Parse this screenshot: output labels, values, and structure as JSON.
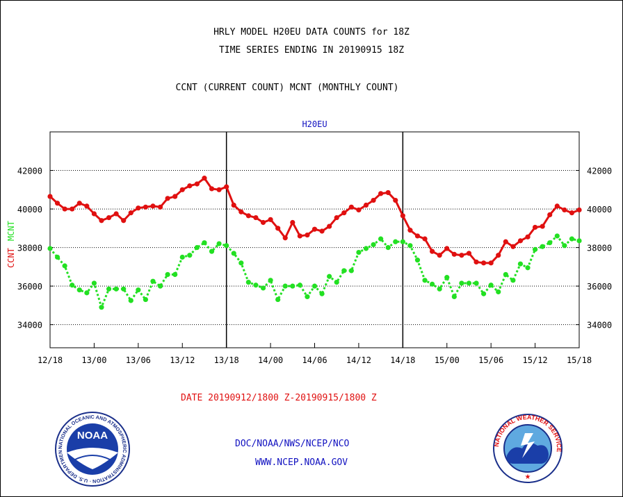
{
  "header": {
    "title_line1": "HRLY MODEL H20EU DATA COUNTS for 18Z",
    "title_line2": "TIME SERIES ENDING IN 20190915 18Z",
    "subtitle": "CCNT (CURRENT COUNT) MCNT (MONTHLY COUNT)"
  },
  "footer": {
    "date_range": "DATE 20190912/1800 Z-20190915/1800 Z",
    "org": "DOC/NOAA/NWS/NCEP/NCO",
    "url": "WWW.NCEP.NOAA.GOV"
  },
  "logos": {
    "noaa_text": "NOAA",
    "noaa_ring_text": "NATIONAL OCEANIC AND ATMOSPHERIC ADMINISTRATION · U.S. DEPARTMENT OF COMMERCE ·",
    "nws_ring_text": "NATIONAL WEATHER SERVICE"
  },
  "colors": {
    "ccnt": "#e01010",
    "mcnt": "#22e022",
    "title": "#000000",
    "chart_title": "#1010c0",
    "date_range": "#e01010",
    "footer_links": "#1010c0"
  },
  "chart_data": {
    "type": "line",
    "title": "H20EU",
    "ylabel_ccnt": "CCNT",
    "ylabel_mcnt": "MCNT",
    "ylim": [
      32800,
      44000
    ],
    "yticks": [
      34000,
      36000,
      38000,
      40000,
      42000
    ],
    "xlim": [
      0,
      72
    ],
    "xticks": [
      {
        "x": 0,
        "label": "12/18"
      },
      {
        "x": 6,
        "label": "13/00"
      },
      {
        "x": 12,
        "label": "13/06"
      },
      {
        "x": 18,
        "label": "13/12"
      },
      {
        "x": 24,
        "label": "13/18"
      },
      {
        "x": 30,
        "label": "14/00"
      },
      {
        "x": 36,
        "label": "14/06"
      },
      {
        "x": 42,
        "label": "14/12"
      },
      {
        "x": 48,
        "label": "14/18"
      },
      {
        "x": 54,
        "label": "15/00"
      },
      {
        "x": 60,
        "label": "15/06"
      },
      {
        "x": 66,
        "label": "15/12"
      },
      {
        "x": 72,
        "label": "15/18"
      }
    ],
    "day_dividers": [
      24,
      48
    ],
    "grid": "horizontal dotted",
    "series": [
      {
        "name": "CCNT",
        "color": "#e01010",
        "style": "solid",
        "values": [
          40650,
          40300,
          40000,
          40000,
          40300,
          40150,
          39750,
          39400,
          39550,
          39750,
          39400,
          39800,
          40050,
          40100,
          40150,
          40100,
          40550,
          40650,
          41000,
          41200,
          41300,
          41600,
          41050,
          41000,
          41150,
          40200,
          39850,
          39650,
          39550,
          39300,
          39450,
          39000,
          38500,
          39300,
          38600,
          38650,
          38950,
          38850,
          39100,
          39550,
          39800,
          40100,
          39950,
          40200,
          40450,
          40800,
          40850,
          40450,
          39650,
          38900,
          38600,
          38450,
          37800,
          37600,
          37950,
          37650,
          37600,
          37700,
          37250,
          37200,
          37200,
          37600,
          38300,
          38050,
          38350,
          38550,
          39050,
          39100,
          39700,
          40150,
          39950,
          39800,
          39950
        ]
      },
      {
        "name": "MCNT",
        "color": "#22e022",
        "style": "dotted",
        "values": [
          37950,
          37500,
          37050,
          36050,
          35800,
          35650,
          36150,
          34900,
          35850,
          35850,
          35850,
          35250,
          35800,
          35300,
          36250,
          36000,
          36600,
          36600,
          37500,
          37600,
          38000,
          38250,
          37800,
          38200,
          38100,
          37700,
          37200,
          36200,
          36050,
          35900,
          36300,
          35300,
          36000,
          36000,
          36050,
          35450,
          36000,
          35600,
          36500,
          36200,
          36800,
          36800,
          37750,
          37950,
          38150,
          38450,
          38000,
          38300,
          38300,
          38100,
          37350,
          36300,
          36100,
          35850,
          36450,
          35450,
          36150,
          36150,
          36150,
          35600,
          36050,
          35700,
          36600,
          36300,
          37150,
          36950,
          37900,
          38050,
          38250,
          38600,
          38100,
          38450,
          38350
        ]
      }
    ]
  }
}
